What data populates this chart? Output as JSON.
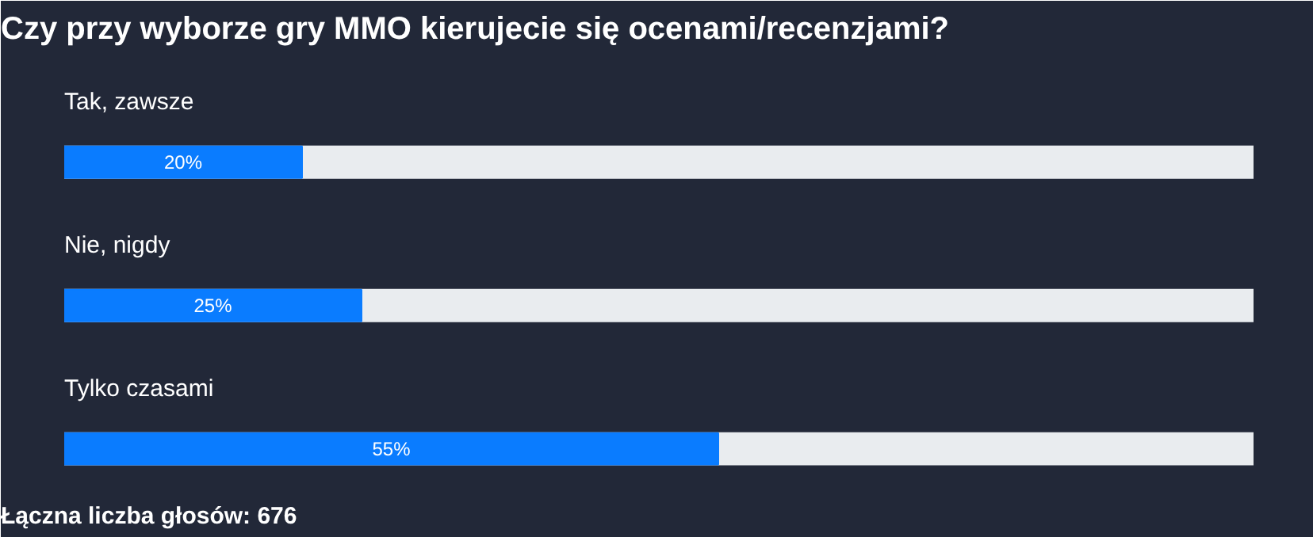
{
  "chart_data": {
    "type": "bar",
    "orientation": "horizontal",
    "title": "Czy przy wyborze gry MMO kierujecie się ocenami/recenzjami?",
    "categories": [
      "Tak, zawsze",
      "Nie, nigdy",
      "Tylko czasami"
    ],
    "values": [
      20,
      25,
      55
    ],
    "value_labels": [
      "20%",
      "25%",
      "55%"
    ],
    "color": "#0a7cff",
    "xlim": [
      0,
      100
    ],
    "tick_labels": false,
    "annotations": [
      "Łączna liczba głosów: 676"
    ]
  }
}
